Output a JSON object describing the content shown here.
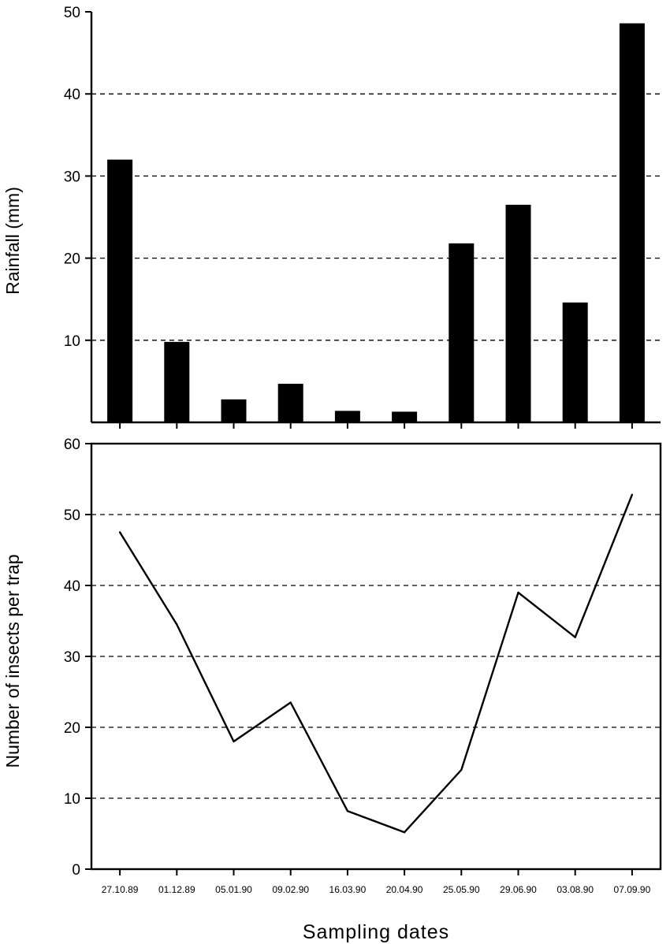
{
  "chart_data": [
    {
      "type": "bar",
      "title": "",
      "categories": [
        "27.10.89",
        "01.12.89",
        "05.01.90",
        "09.02.90",
        "16.03.90",
        "20.04.90",
        "25.05.90",
        "29.06.90",
        "03.08.90",
        "07.09.90"
      ],
      "values": [
        32,
        9.8,
        2.8,
        4.7,
        1.4,
        1.3,
        21.8,
        26.5,
        14.6,
        48.6
      ],
      "xlabel": "",
      "ylabel": "Rainfall (mm)",
      "ylim": [
        0,
        50
      ],
      "yticks": [
        10,
        20,
        30,
        40,
        50
      ],
      "grid": true,
      "bar_color": "#000000"
    },
    {
      "type": "line",
      "title": "",
      "categories": [
        "27.10.89",
        "01.12.89",
        "05.01.90",
        "09.02.90",
        "16.03.90",
        "20.04.90",
        "25.05.90",
        "29.06.90",
        "03.08.90",
        "07.09.90"
      ],
      "values": [
        47.5,
        34.5,
        18,
        23.5,
        8.2,
        5.2,
        14,
        39,
        32.7,
        52.8
      ],
      "xlabel": "Sampling dates",
      "ylabel": "Number of insects per trap",
      "ylim": [
        0,
        60
      ],
      "yticks": [
        0,
        10,
        20,
        30,
        40,
        50,
        60
      ],
      "grid": true,
      "line_color": "#000000"
    }
  ]
}
